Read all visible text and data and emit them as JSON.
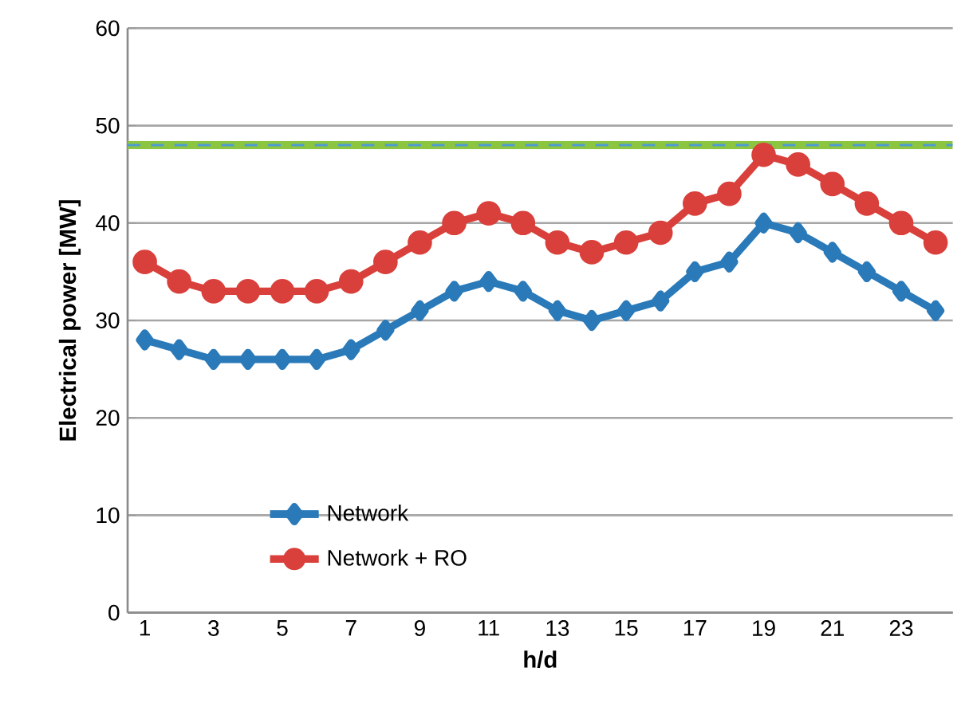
{
  "chart_data": {
    "type": "line",
    "xlabel": "h/d",
    "ylabel": "Electrical power [MW]",
    "x": [
      1,
      2,
      3,
      4,
      5,
      6,
      7,
      8,
      9,
      10,
      11,
      12,
      13,
      14,
      15,
      16,
      17,
      18,
      19,
      20,
      21,
      22,
      23,
      24
    ],
    "xlim": [
      0.5,
      24.5
    ],
    "xticks": [
      1,
      3,
      5,
      7,
      9,
      11,
      13,
      15,
      17,
      19,
      21,
      23
    ],
    "ylim": [
      0,
      60
    ],
    "yticks": [
      0,
      10,
      20,
      30,
      40,
      50,
      60
    ],
    "grid": "y",
    "legend": "bottom left",
    "series": [
      {
        "name": "Network",
        "color": "#2a7ab9",
        "marker": "diamond",
        "values": [
          28,
          27,
          26,
          26,
          26,
          26,
          27,
          29,
          31,
          33,
          34,
          33,
          31,
          30,
          31,
          32,
          35,
          36,
          40,
          39,
          37,
          35,
          33,
          31
        ]
      },
      {
        "name": "Network + RO",
        "color": "#d9403b",
        "marker": "circle",
        "values": [
          36,
          34,
          33,
          33,
          33,
          33,
          34,
          36,
          38,
          40,
          41,
          40,
          38,
          37,
          38,
          39,
          42,
          43,
          47,
          46,
          44,
          42,
          40,
          38
        ]
      }
    ],
    "ref_lines": [
      {
        "axis": "y",
        "value": 48,
        "color": "#8cc540",
        "line_style": "solid"
      },
      {
        "axis": "y",
        "value": 48,
        "color": "#4f9bd1",
        "line_style": "dashed"
      }
    ]
  }
}
